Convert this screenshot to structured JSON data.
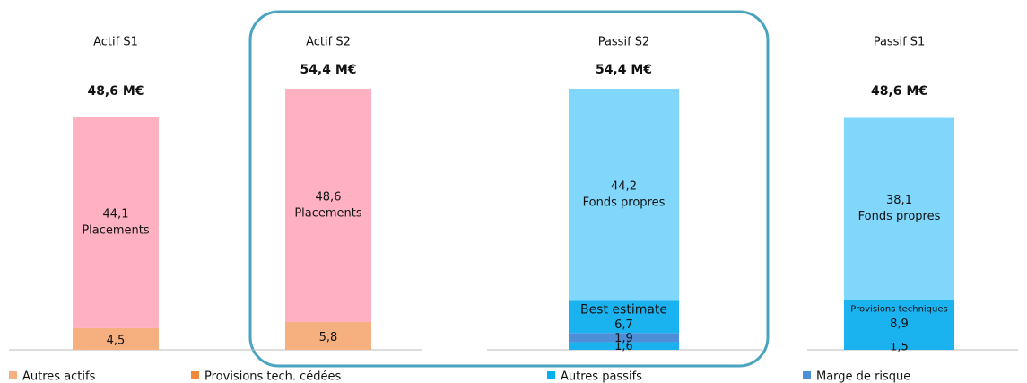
{
  "chart_data": {
    "type": "stacked-bar",
    "bars": [
      {
        "name": "Actif  S1",
        "total": 48.6,
        "total_label": "48,6 M€",
        "segments": [
          {
            "name": null,
            "value": 4.5,
            "value_label": "4,5",
            "color": "#f6b07f"
          },
          {
            "name": null,
            "value": 0.0,
            "value_label": "0,0",
            "color": "#ef8a3c"
          },
          {
            "name": "Placements",
            "value": 44.1,
            "value_label": "44,1",
            "color": "#ffb1c1"
          }
        ]
      },
      {
        "name": "Actif  S2",
        "total": 54.4,
        "total_label": "54,4 M€",
        "segments": [
          {
            "name": null,
            "value": 5.8,
            "value_label": "5,8",
            "color": "#f6b07f"
          },
          {
            "name": null,
            "value": 0.0,
            "value_label": "0,0",
            "color": "#ef8a3c"
          },
          {
            "name": "Placements",
            "value": 48.6,
            "value_label": "48,6",
            "color": "#ffb1c1"
          }
        ]
      },
      {
        "name": "Passif S2",
        "total": 54.4,
        "total_label": "54,4 M€",
        "segments": [
          {
            "name": null,
            "value": 1.6,
            "value_label": "1,6",
            "color": "#19b1ee"
          },
          {
            "name": null,
            "value": 1.9,
            "value_label": "1,9",
            "color": "#4e8ed9"
          },
          {
            "name": "Best estimate",
            "value": 6.7,
            "value_label": "6,7",
            "color": "#1ab3f0"
          },
          {
            "name": "Fonds propres",
            "value": 44.2,
            "value_label": "44,2",
            "color": "#80d6fb"
          }
        ]
      },
      {
        "name": "Passif S1",
        "total": 48.6,
        "total_label": "48,6 M€",
        "segments": [
          {
            "name": null,
            "value": 1.5,
            "value_label": "1,5",
            "color": "#19b1ee"
          },
          {
            "name": "Provisions techniques",
            "value": 8.9,
            "value_label": "8,9",
            "color": "#1ab3f0"
          },
          {
            "name": "Fonds propres",
            "value": 38.1,
            "value_label": "38,1",
            "color": "#80d6fb"
          }
        ]
      }
    ],
    "legend": [
      {
        "name": "Autres actifs",
        "color": "#f6b07f"
      },
      {
        "name": "Provisions tech. cédées",
        "color": "#ef8a3c"
      },
      {
        "name": "Autres passifs",
        "color": "#00b0f0"
      },
      {
        "name": "Marge de risque",
        "color": "#4a8fd8"
      }
    ]
  }
}
